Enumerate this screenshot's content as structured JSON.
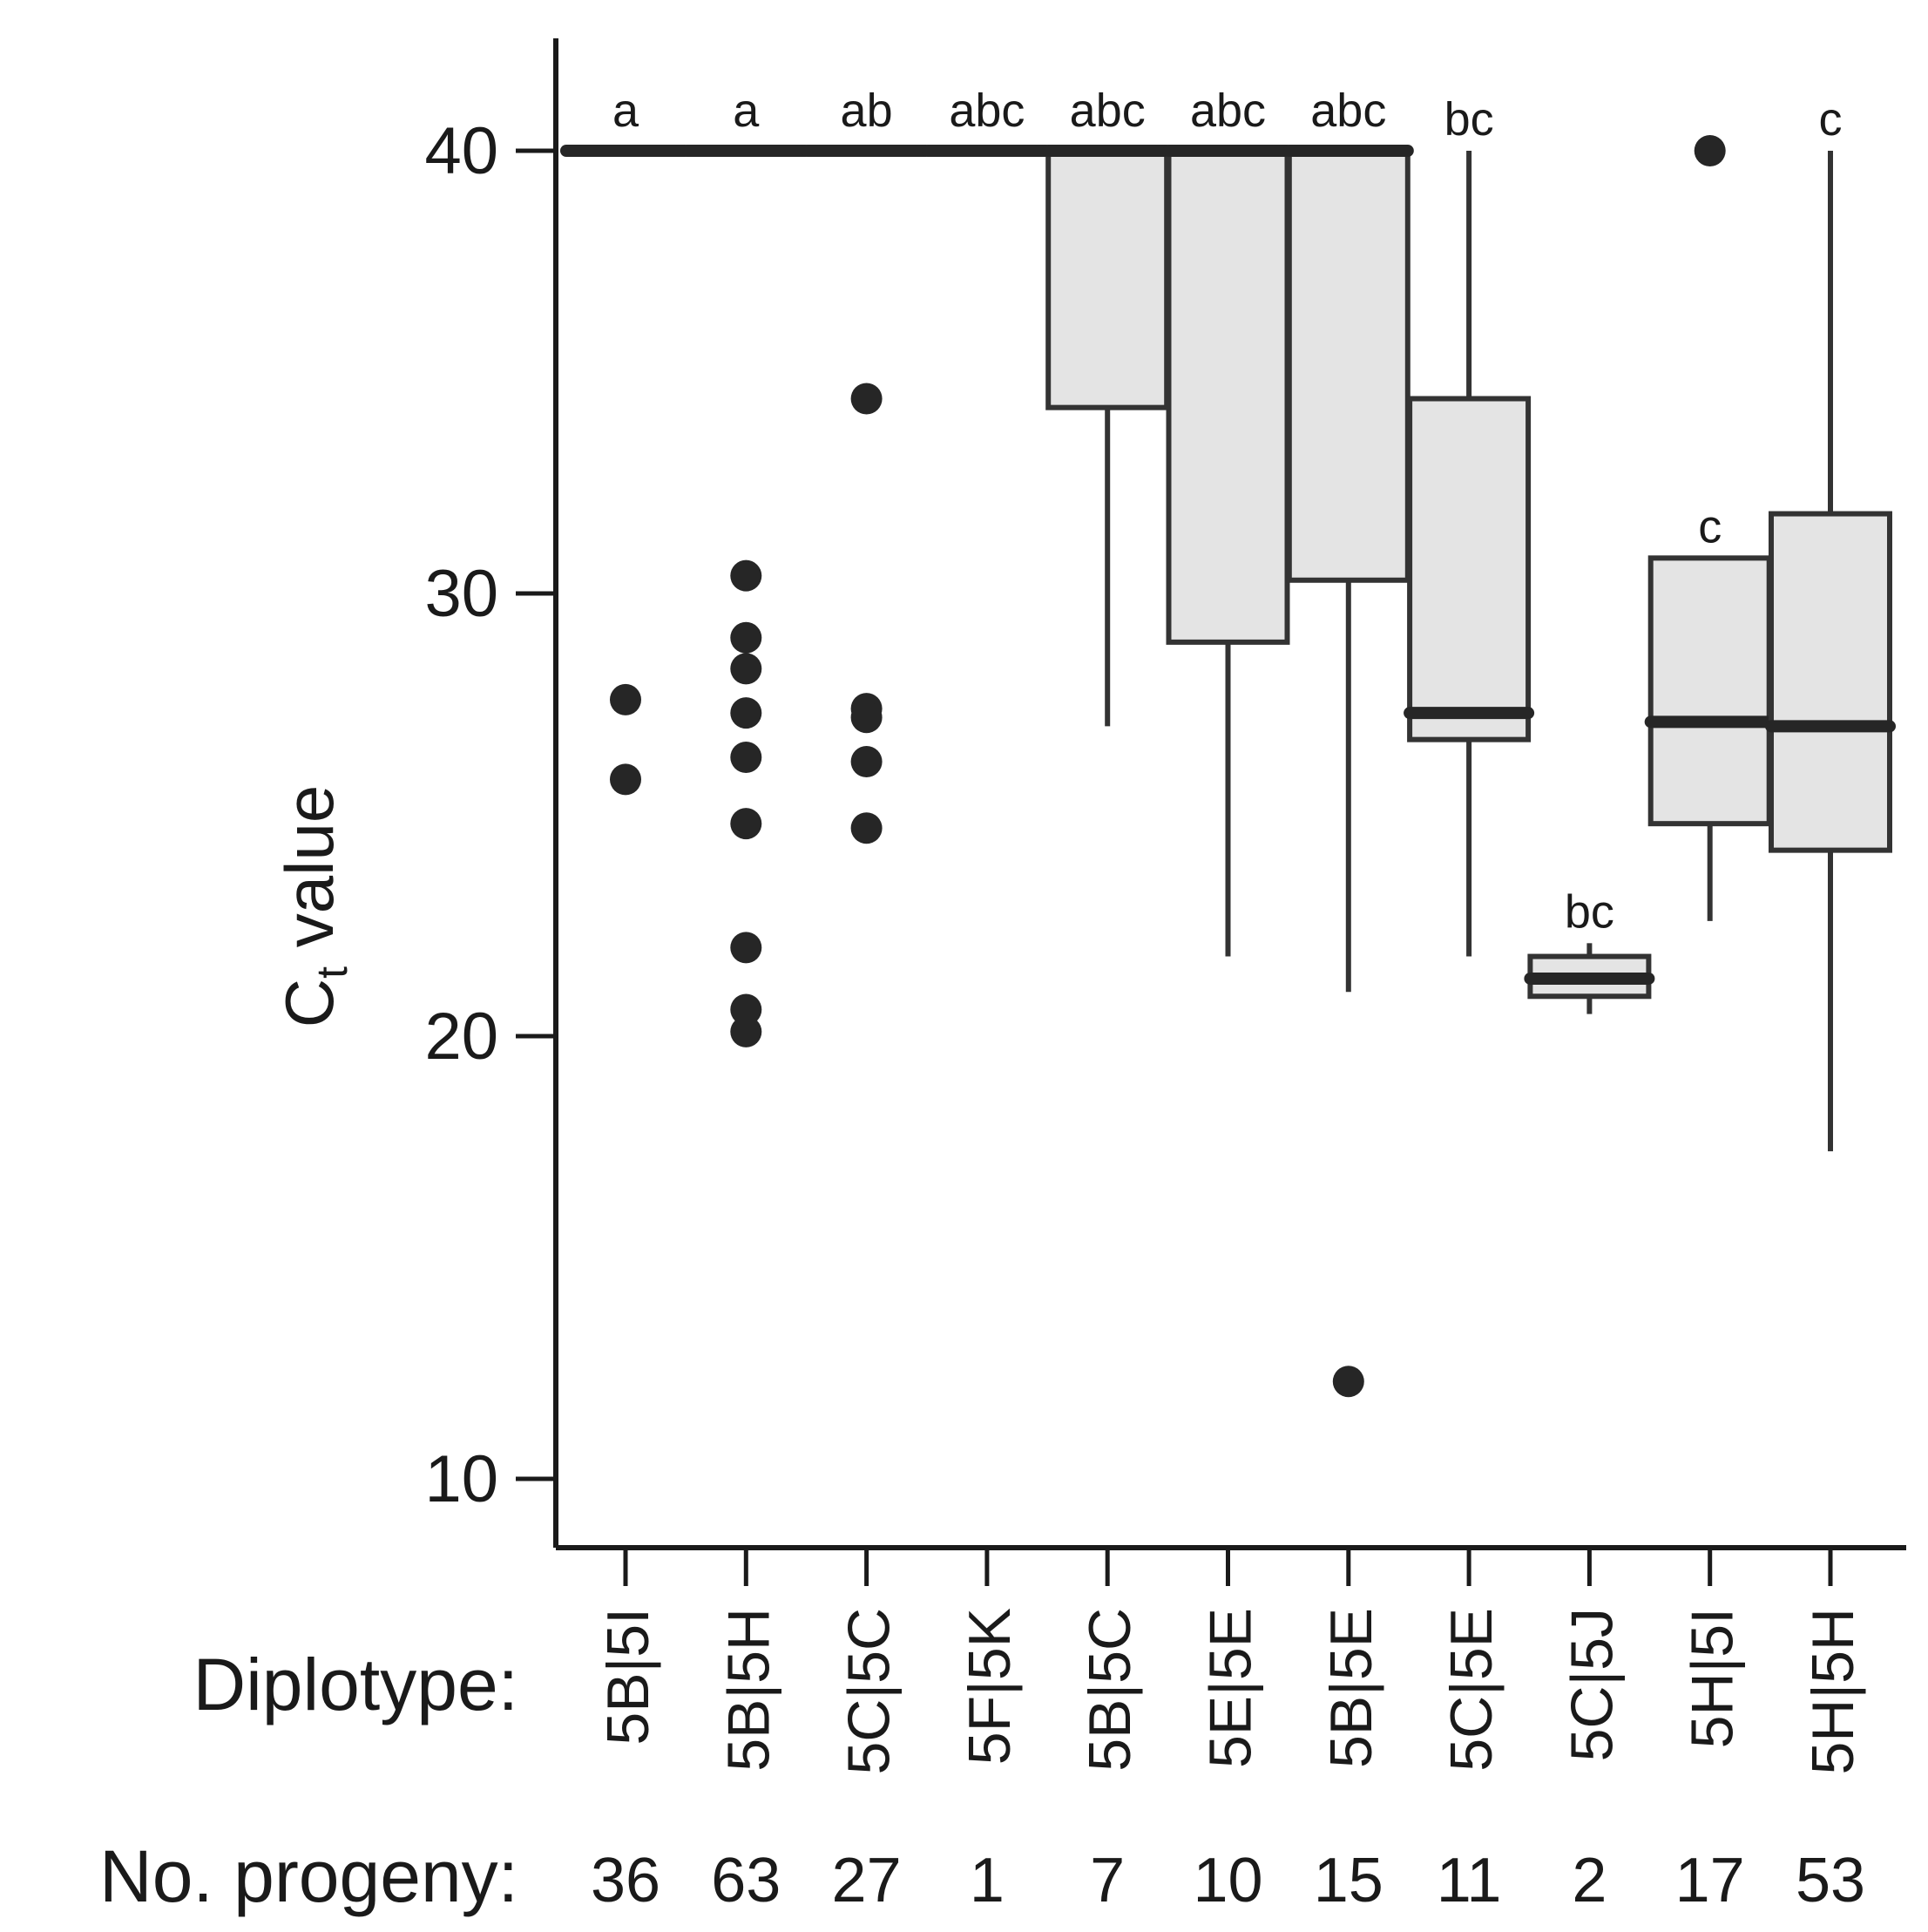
{
  "chart_data": {
    "type": "box",
    "ylabel": "C",
    "ylabel_subscript": "t",
    "ylabel_suffix": " value",
    "ylim": [
      7.5,
      42.5
    ],
    "yticks": [
      10,
      20,
      30,
      40
    ],
    "grid": false,
    "row_labels": {
      "categories": "Diplotype:",
      "counts": "No. progeny:"
    },
    "categories": [
      "5B|5I",
      "5B|5H",
      "5C|5C",
      "5F|5K",
      "5B|5C",
      "5E|5E",
      "5B|5E",
      "5C|5E",
      "5C|5J",
      "5H|5I",
      "5H|5H"
    ],
    "progeny": [
      "36",
      "63",
      "27",
      "1",
      "7",
      "10",
      "15",
      "11",
      "2",
      "17",
      "53"
    ],
    "significance_letters": [
      "a",
      "a",
      "ab",
      "abc",
      "abc",
      "abc",
      "abc",
      "bc",
      "bc",
      "c",
      "c"
    ],
    "boxes": [
      {
        "q1": 40,
        "median": 40,
        "q3": 40,
        "whisker_low": 40,
        "whisker_high": 40,
        "outliers": [
          27.6,
          25.8
        ]
      },
      {
        "q1": 40,
        "median": 40,
        "q3": 40,
        "whisker_low": 40,
        "whisker_high": 40,
        "outliers": [
          30.4,
          29.0,
          28.3,
          27.3,
          26.3,
          24.8,
          22.0,
          20.6,
          20.1
        ]
      },
      {
        "q1": 40,
        "median": 40,
        "q3": 40,
        "whisker_low": 40,
        "whisker_high": 40,
        "outliers": [
          34.4,
          27.4,
          27.2,
          26.2,
          24.7
        ]
      },
      {
        "q1": 40,
        "median": 40,
        "q3": 40,
        "whisker_low": 40,
        "whisker_high": 40,
        "outliers": []
      },
      {
        "q1": 34.2,
        "median": 40,
        "q3": 40,
        "whisker_low": 27.0,
        "whisker_high": 40,
        "outliers": []
      },
      {
        "q1": 28.9,
        "median": 40,
        "q3": 40,
        "whisker_low": 21.8,
        "whisker_high": 40,
        "outliers": []
      },
      {
        "q1": 30.3,
        "median": 40,
        "q3": 40,
        "whisker_low": 21.0,
        "whisker_high": 40,
        "outliers": [
          12.2
        ]
      },
      {
        "q1": 26.7,
        "median": 27.3,
        "q3": 34.4,
        "whisker_low": 21.8,
        "whisker_high": 40,
        "outliers": []
      },
      {
        "q1": 20.9,
        "median": 21.3,
        "q3": 21.8,
        "whisker_low": 20.5,
        "whisker_high": 22.1,
        "outliers": []
      },
      {
        "q1": 24.8,
        "median": 27.1,
        "q3": 30.8,
        "whisker_low": 22.6,
        "whisker_high": 30.8,
        "outliers": [
          40.0
        ]
      },
      {
        "q1": 24.2,
        "median": 27.0,
        "q3": 31.8,
        "whisker_low": 17.4,
        "whisker_high": 40,
        "outliers": []
      }
    ]
  }
}
